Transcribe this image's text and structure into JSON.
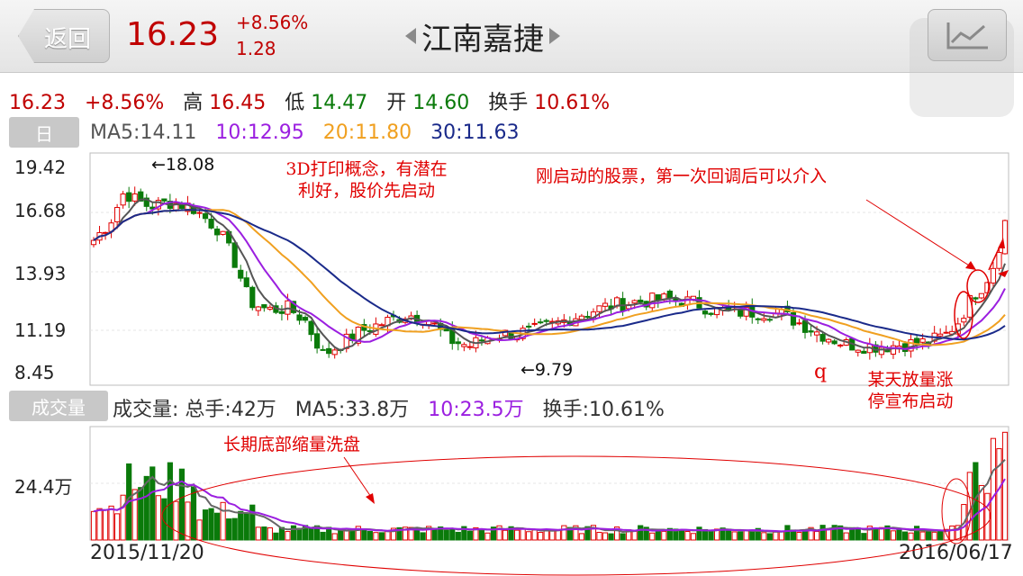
{
  "header": {
    "back_label": "返回",
    "price": "16.23",
    "change_pct": "+8.56%",
    "change_abs": "1.28",
    "stock_name": "江南嘉捷",
    "chart_icon": "line-chart-icon"
  },
  "quote": {
    "price": "16.23",
    "change_pct": "+8.56%",
    "high_label": "高",
    "high": "16.45",
    "low_label": "低",
    "low": "14.47",
    "open_label": "开",
    "open": "14.60",
    "turnover_label": "换手",
    "turnover": "10.61%"
  },
  "period_tab": "日",
  "ma": {
    "ma5": "MA5:14.11",
    "ma10": "10:12.95",
    "ma20": "20:11.80",
    "ma30": "30:11.63"
  },
  "volume_tab": "成交量",
  "volume_info": {
    "total": "成交量: 总手:42万",
    "ma5": "MA5:33.8万",
    "ma10": "10:23.5万",
    "turnover": "换手:10.61%"
  },
  "price_axis": [
    "19.42",
    "16.68",
    "13.93",
    "11.19",
    "8.45"
  ],
  "volume_axis": "24.4万",
  "dates": {
    "start": "2015/11/20",
    "end": "2016/06/17"
  },
  "markers": {
    "high": "←18.08",
    "low": "←9.79"
  },
  "annotations": {
    "concept_1": "3D打印概念，有潜在",
    "concept_2": "利好，股价先启动",
    "entry": "刚启动的股票，第一次回调后可以介入",
    "q": "q",
    "limit_1": "某天放量涨",
    "limit_2": "停宣布启动",
    "washout": "长期底部缩量洗盘"
  },
  "colors": {
    "up": "#e00000",
    "down": "#0a7a0a",
    "ma5": "#555555",
    "ma10": "#9b1fe0",
    "ma20": "#f0a020",
    "ma30": "#1a2a8a"
  },
  "chart_data": {
    "type": "candlestick",
    "y_range": [
      8.45,
      19.42
    ],
    "ma_values": {
      "ma5": 14.11,
      "ma10": 12.95,
      "ma20": 11.8,
      "ma30": 11.63
    },
    "last_close": 16.23,
    "period_high": 18.08,
    "period_low": 9.79,
    "x_range": [
      "2015/11/20",
      "2016/06/17"
    ],
    "volume_reference": "24.4万"
  }
}
